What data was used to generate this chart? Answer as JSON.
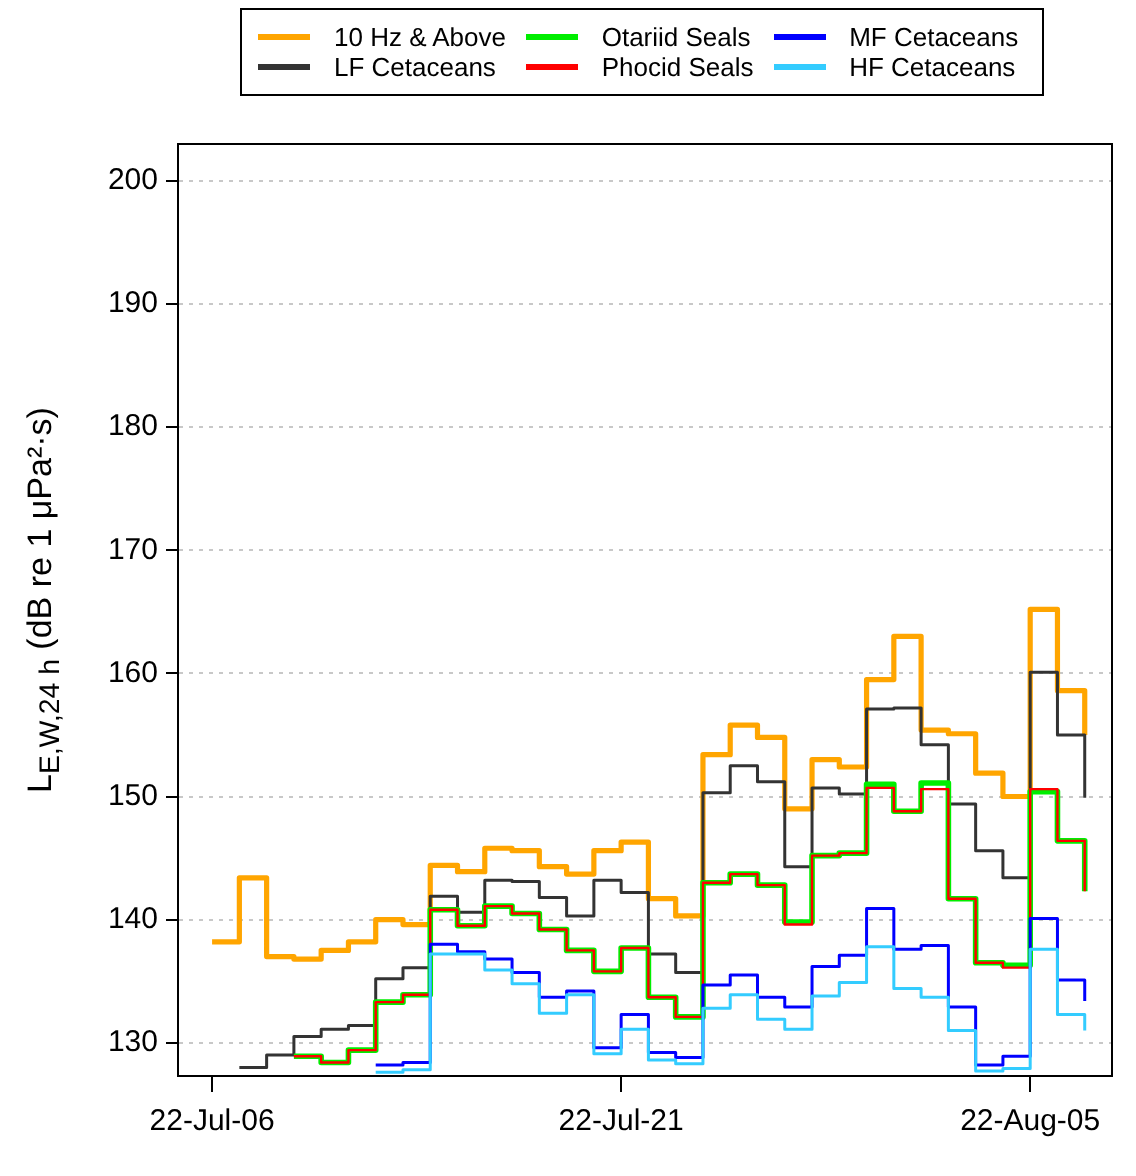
{
  "chart_data": {
    "type": "step",
    "ylabel": "L$_{E,W,24 h}$ (dB re 1 μPa²·s)",
    "x": [
      "--07-06",
      "--07-07",
      "--07-08",
      "--07-09",
      "--07-10",
      "--07-11",
      "--07-12",
      "--07-13",
      "--07-14",
      "--07-15",
      "--07-16",
      "--07-17",
      "--07-18",
      "--07-19",
      "--07-20",
      "--07-21",
      "--07-22",
      "--07-23",
      "--07-24",
      "--07-25",
      "--07-26",
      "--07-27",
      "--07-28",
      "--07-29",
      "--07-30",
      "--07-31",
      "--08-01",
      "--08-02",
      "--08-03",
      "--08-04",
      "--08-05",
      "--08-06",
      "--08-07"
    ],
    "series": [
      {
        "name": "10 Hz & Above",
        "color": "#ffa500",
        "values": [
          138.2,
          143.4,
          137.0,
          136.8,
          137.5,
          138.2,
          140.0,
          139.6,
          144.4,
          143.9,
          145.8,
          145.6,
          144.3,
          143.7,
          145.6,
          146.3,
          141.7,
          140.3,
          153.4,
          155.8,
          154.8,
          149.0,
          153.0,
          152.4,
          159.5,
          163.0,
          155.4,
          155.1,
          151.9,
          150.0,
          165.2,
          158.6,
          155.0
        ]
      },
      {
        "name": "LF Cetaceans",
        "color": "#333333",
        "values": [
          null,
          128.0,
          129.0,
          130.5,
          131.1,
          131.4,
          135.2,
          136.1,
          141.9,
          140.6,
          143.2,
          143.1,
          141.8,
          140.3,
          143.2,
          142.2,
          137.2,
          135.7,
          150.3,
          152.5,
          151.2,
          144.3,
          150.7,
          150.2,
          157.1,
          157.2,
          154.2,
          149.4,
          145.6,
          143.4,
          160.1,
          155.0,
          149.9
        ]
      },
      {
        "name": "Otariid Seals",
        "color": "#00ee00",
        "values": [
          null,
          null,
          null,
          128.9,
          128.4,
          129.4,
          133.3,
          133.9,
          140.8,
          139.5,
          141.1,
          140.5,
          139.2,
          137.5,
          135.8,
          137.7,
          133.7,
          132.1,
          143.0,
          143.7,
          142.8,
          139.8,
          145.2,
          145.4,
          151.0,
          148.8,
          151.1,
          141.7,
          136.5,
          136.3,
          150.4,
          146.4,
          142.3
        ]
      },
      {
        "name": "Phocid Seals",
        "color": "#ff0000",
        "values": [
          null,
          null,
          null,
          128.9,
          128.4,
          129.4,
          133.3,
          133.9,
          140.8,
          139.5,
          141.1,
          140.5,
          139.2,
          137.5,
          135.8,
          137.7,
          133.7,
          132.1,
          143.0,
          143.7,
          142.8,
          139.6,
          145.2,
          145.4,
          150.7,
          148.8,
          150.6,
          141.7,
          136.5,
          136.1,
          150.6,
          146.4,
          142.3
        ]
      },
      {
        "name": "MF Cetaceans",
        "color": "#0000ff",
        "values": [
          null,
          null,
          null,
          null,
          null,
          null,
          128.2,
          128.4,
          138.0,
          137.4,
          136.8,
          135.7,
          133.7,
          134.2,
          129.6,
          132.3,
          129.2,
          128.8,
          134.7,
          135.5,
          133.7,
          132.9,
          136.2,
          137.1,
          140.9,
          137.6,
          137.9,
          132.9,
          128.2,
          128.9,
          140.1,
          135.1,
          133.4
        ]
      },
      {
        "name": "HF Cetaceans",
        "color": "#33ccff",
        "values": [
          null,
          null,
          null,
          null,
          null,
          null,
          127.6,
          127.8,
          137.2,
          137.2,
          135.9,
          134.8,
          132.4,
          133.9,
          129.1,
          131.1,
          128.6,
          128.3,
          132.8,
          133.9,
          131.9,
          131.1,
          133.8,
          134.9,
          137.8,
          134.4,
          133.7,
          131.0,
          127.7,
          127.9,
          137.6,
          132.3,
          131.0
        ]
      }
    ],
    "xlim": [
      "--07-04T18:00",
      "--08-08"
    ],
    "xticks": [
      {
        "value": "--07-06",
        "label": "22-Jul-06"
      },
      {
        "value": "--07-21",
        "label": "22-Jul-21"
      },
      {
        "value": "--08-05",
        "label": "22-Aug-05"
      }
    ],
    "ylim": [
      127.3,
      203
    ],
    "yticks": [
      130,
      140,
      150,
      160,
      170,
      180,
      190,
      200
    ],
    "grid": "y",
    "legend": "top",
    "marker": "none"
  }
}
